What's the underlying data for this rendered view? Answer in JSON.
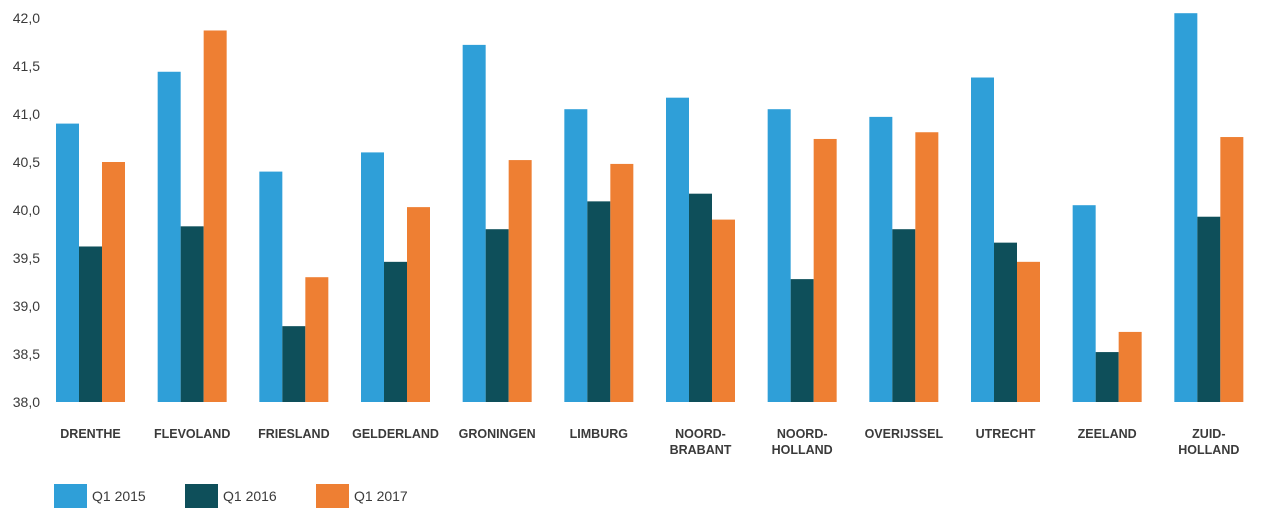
{
  "chart_data": {
    "type": "bar",
    "title": "",
    "xlabel": "",
    "ylabel": "",
    "ylim": [
      38.0,
      42.0
    ],
    "yticks": [
      38.0,
      38.5,
      39.0,
      39.5,
      40.0,
      40.5,
      41.0,
      41.5,
      42.0
    ],
    "ytick_labels": [
      "38,0",
      "38,5",
      "39,0",
      "39,5",
      "40,0",
      "40,5",
      "41,0",
      "41,5",
      "42,0"
    ],
    "grid": false,
    "legend_position": "bottom-left",
    "categories": [
      "DRENTHE",
      "FLEVOLAND",
      "FRIESLAND",
      "GELDERLAND",
      "GRONINGEN",
      "LIMBURG",
      "NOORD-BRABANT",
      "NOORD-HOLLAND",
      "OVERIJSSEL",
      "UTRECHT",
      "ZEELAND",
      "ZUID-HOLLAND"
    ],
    "category_label_lines": [
      [
        "DRENTHE"
      ],
      [
        "FLEVOLAND"
      ],
      [
        "FRIESLAND"
      ],
      [
        "GELDERLAND"
      ],
      [
        "GRONINGEN"
      ],
      [
        "LIMBURG"
      ],
      [
        "NOORD-",
        "BRABANT"
      ],
      [
        "NOORD-",
        "HOLLAND"
      ],
      [
        "OVERIJSSEL"
      ],
      [
        "UTRECHT"
      ],
      [
        "ZEELAND"
      ],
      [
        "ZUID-",
        "HOLLAND"
      ]
    ],
    "series": [
      {
        "name": "Q1 2015",
        "color": "#2f9fd8",
        "values": [
          40.9,
          41.44,
          40.4,
          40.6,
          41.72,
          41.05,
          41.17,
          41.05,
          40.97,
          41.38,
          40.05,
          42.05
        ]
      },
      {
        "name": "Q1 2016",
        "color": "#0e4f5a",
        "values": [
          39.62,
          39.83,
          38.79,
          39.46,
          39.8,
          40.09,
          40.17,
          39.28,
          39.8,
          39.66,
          38.52,
          39.93
        ]
      },
      {
        "name": "Q1 2017",
        "color": "#ee7f33",
        "values": [
          40.5,
          41.87,
          39.3,
          40.03,
          40.52,
          40.48,
          39.9,
          40.74,
          40.81,
          39.46,
          38.73,
          40.76
        ]
      }
    ]
  }
}
